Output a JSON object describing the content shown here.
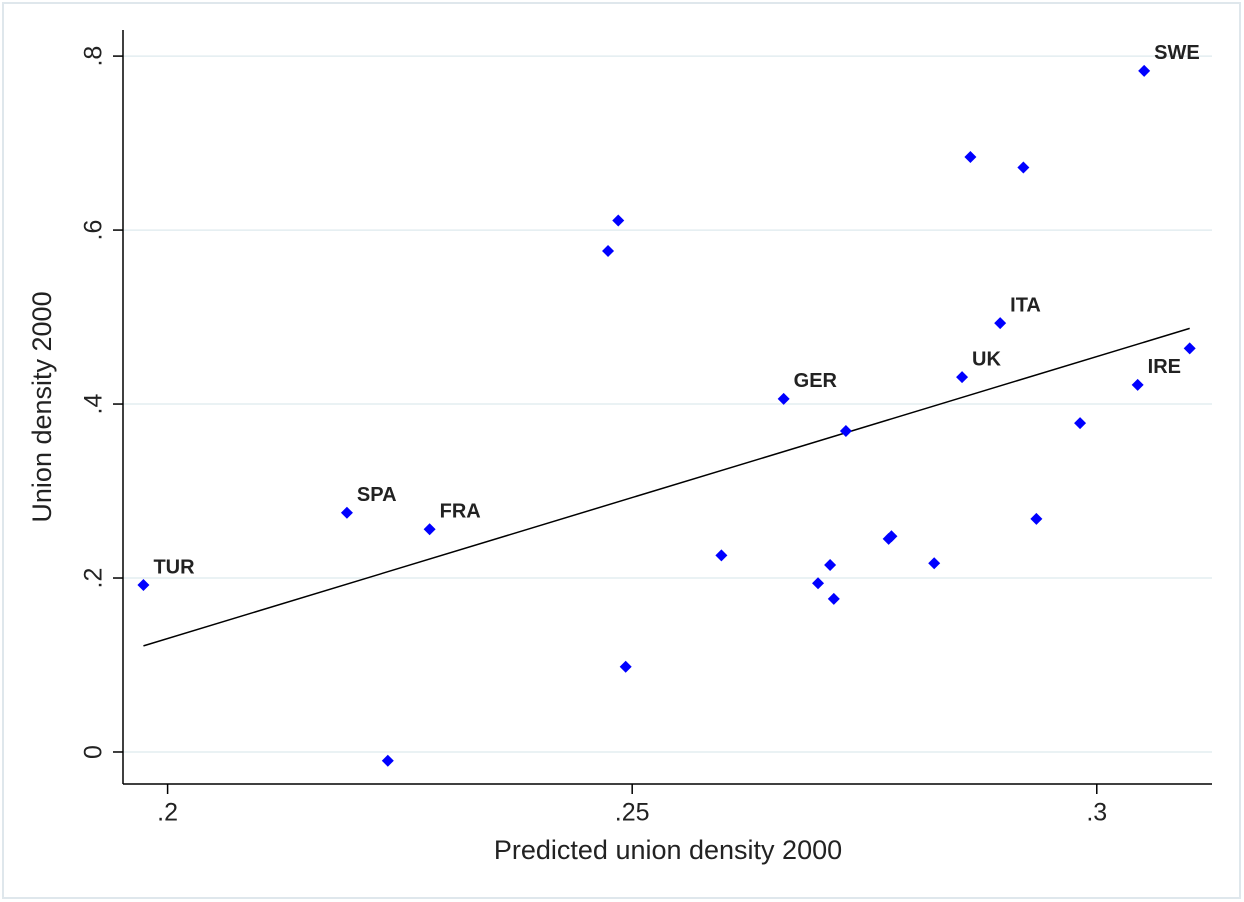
{
  "chart_data": {
    "type": "scatter",
    "xlabel": "Predicted union density 2000",
    "ylabel": "Union density 2000",
    "x": [
      0.1974,
      0.2193,
      0.2282,
      0.2237,
      0.2474,
      0.2485,
      0.2493,
      0.2596,
      0.2663,
      0.27,
      0.2713,
      0.2717,
      0.273,
      0.2776,
      0.2779,
      0.2825,
      0.2855,
      0.2864,
      0.2896,
      0.2921,
      0.2935,
      0.2982,
      0.3044,
      0.3051,
      0.31
    ],
    "y": [
      0.192,
      0.275,
      0.256,
      -0.01,
      0.576,
      0.611,
      0.098,
      0.226,
      0.406,
      0.194,
      0.215,
      0.176,
      0.369,
      0.245,
      0.248,
      0.217,
      0.431,
      0.684,
      0.493,
      0.672,
      0.268,
      0.378,
      0.422,
      0.783,
      0.464
    ],
    "labels": [
      "TUR",
      "SPA",
      "FRA",
      null,
      null,
      null,
      null,
      null,
      "GER",
      null,
      null,
      null,
      null,
      null,
      null,
      null,
      "UK",
      null,
      "ITA",
      null,
      null,
      null,
      "IRE",
      "SWE",
      null
    ],
    "color": "#0000ff",
    "fit": {
      "x": [
        0.1974,
        0.31
      ],
      "y": [
        0.122,
        0.487
      ],
      "color": "#000000"
    },
    "xlim": [
      0.1952,
      0.3124
    ],
    "ylim": [
      -0.0368,
      0.83
    ],
    "xticks": [
      {
        "value": 0.2,
        "label": ".2"
      },
      {
        "value": 0.25,
        "label": ".25"
      },
      {
        "value": 0.3,
        "label": ".3"
      }
    ],
    "yticks": [
      0,
      {
        "value": 0.2,
        "label": ".2"
      },
      {
        "value": 0.4,
        "label": ".4"
      },
      {
        "value": 0.6,
        "label": ".6"
      },
      {
        "value": 0.8,
        "label": ".8"
      }
    ],
    "grid": true
  }
}
